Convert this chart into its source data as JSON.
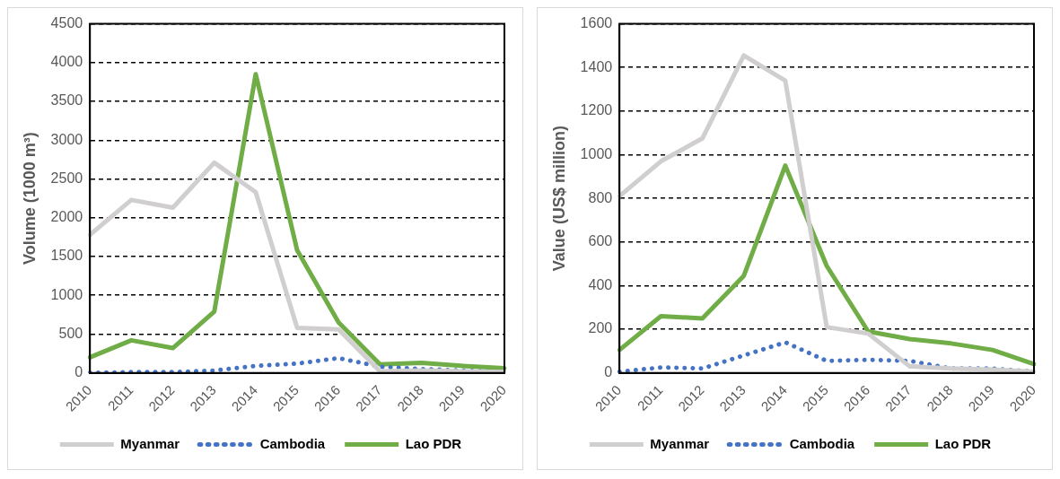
{
  "chart_data": [
    {
      "type": "line",
      "ylabel": "Volume (1000 m³)",
      "categories": [
        "2010",
        "2011",
        "2012",
        "2013",
        "2014",
        "2015",
        "2016",
        "2017",
        "2018",
        "2019",
        "2020"
      ],
      "ylim": [
        0,
        4500
      ],
      "yticks": [
        0,
        500,
        1000,
        1500,
        2000,
        2500,
        3000,
        3500,
        4000,
        4500
      ],
      "grid": "y",
      "legend": "bottom",
      "marker": "none",
      "series": [
        {
          "name": "Myanmar",
          "color": "#d0cece",
          "line_style": "solid",
          "values": [
            1780,
            2230,
            2130,
            2710,
            2330,
            580,
            560,
            20,
            30,
            20,
            10
          ]
        },
        {
          "name": "Cambodia",
          "color": "#4472c4",
          "line_style": "dotted",
          "values": [
            0,
            10,
            10,
            30,
            90,
            120,
            190,
            80,
            50,
            30,
            10
          ]
        },
        {
          "name": "Lao PDR",
          "color": "#70ad47",
          "line_style": "solid",
          "values": [
            200,
            420,
            320,
            790,
            3850,
            1580,
            650,
            110,
            130,
            90,
            60
          ]
        }
      ]
    },
    {
      "type": "line",
      "ylabel": "Value (US$ million)",
      "categories": [
        "2010",
        "2011",
        "2012",
        "2013",
        "2014",
        "2015",
        "2016",
        "2017",
        "2018",
        "2019",
        "2020"
      ],
      "ylim": [
        0,
        1600
      ],
      "yticks": [
        0,
        200,
        400,
        600,
        800,
        1000,
        1200,
        1400,
        1600
      ],
      "grid": "y",
      "legend": "bottom",
      "marker": "none",
      "series": [
        {
          "name": "Myanmar",
          "color": "#d0cece",
          "line_style": "solid",
          "values": [
            810,
            970,
            1075,
            1455,
            1340,
            210,
            180,
            30,
            20,
            15,
            5
          ]
        },
        {
          "name": "Cambodia",
          "color": "#4472c4",
          "line_style": "dotted",
          "values": [
            5,
            25,
            20,
            80,
            140,
            55,
            60,
            55,
            20,
            20,
            5
          ]
        },
        {
          "name": "Lao PDR",
          "color": "#70ad47",
          "line_style": "solid",
          "values": [
            105,
            260,
            250,
            445,
            950,
            490,
            190,
            155,
            135,
            105,
            40
          ]
        }
      ]
    }
  ]
}
